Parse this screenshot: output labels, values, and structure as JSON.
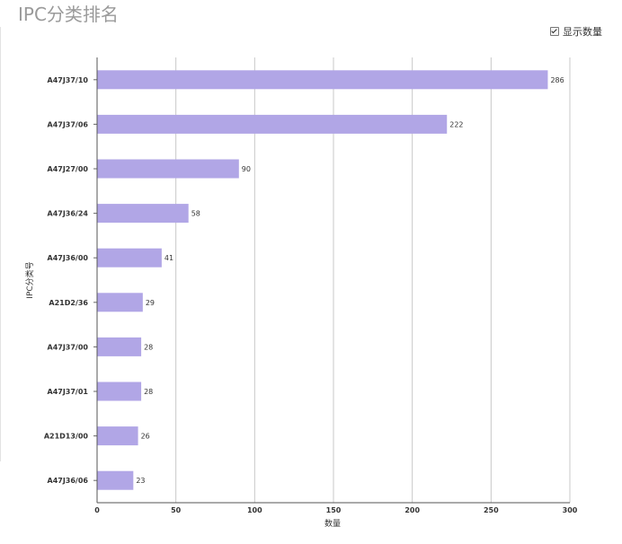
{
  "title": "IPC分类排名",
  "toggle": {
    "label": "显示数量",
    "checked": true
  },
  "chart_data": {
    "type": "bar",
    "orientation": "horizontal",
    "categories": [
      "A47J37/10",
      "A47J37/06",
      "A47J27/00",
      "A47J36/24",
      "A47J36/00",
      "A21D2/36",
      "A47J37/00",
      "A47J37/01",
      "A21D13/00",
      "A47J36/06"
    ],
    "values": [
      286,
      222,
      90,
      58,
      41,
      29,
      28,
      28,
      26,
      23
    ],
    "xlabel": "数量",
    "ylabel": "IPC分类号",
    "xlim": [
      0,
      300
    ],
    "xticks": [
      0,
      50,
      100,
      150,
      200,
      250,
      300
    ],
    "grid": true,
    "data_labels": true,
    "bar_color": "#b1a6e6"
  }
}
